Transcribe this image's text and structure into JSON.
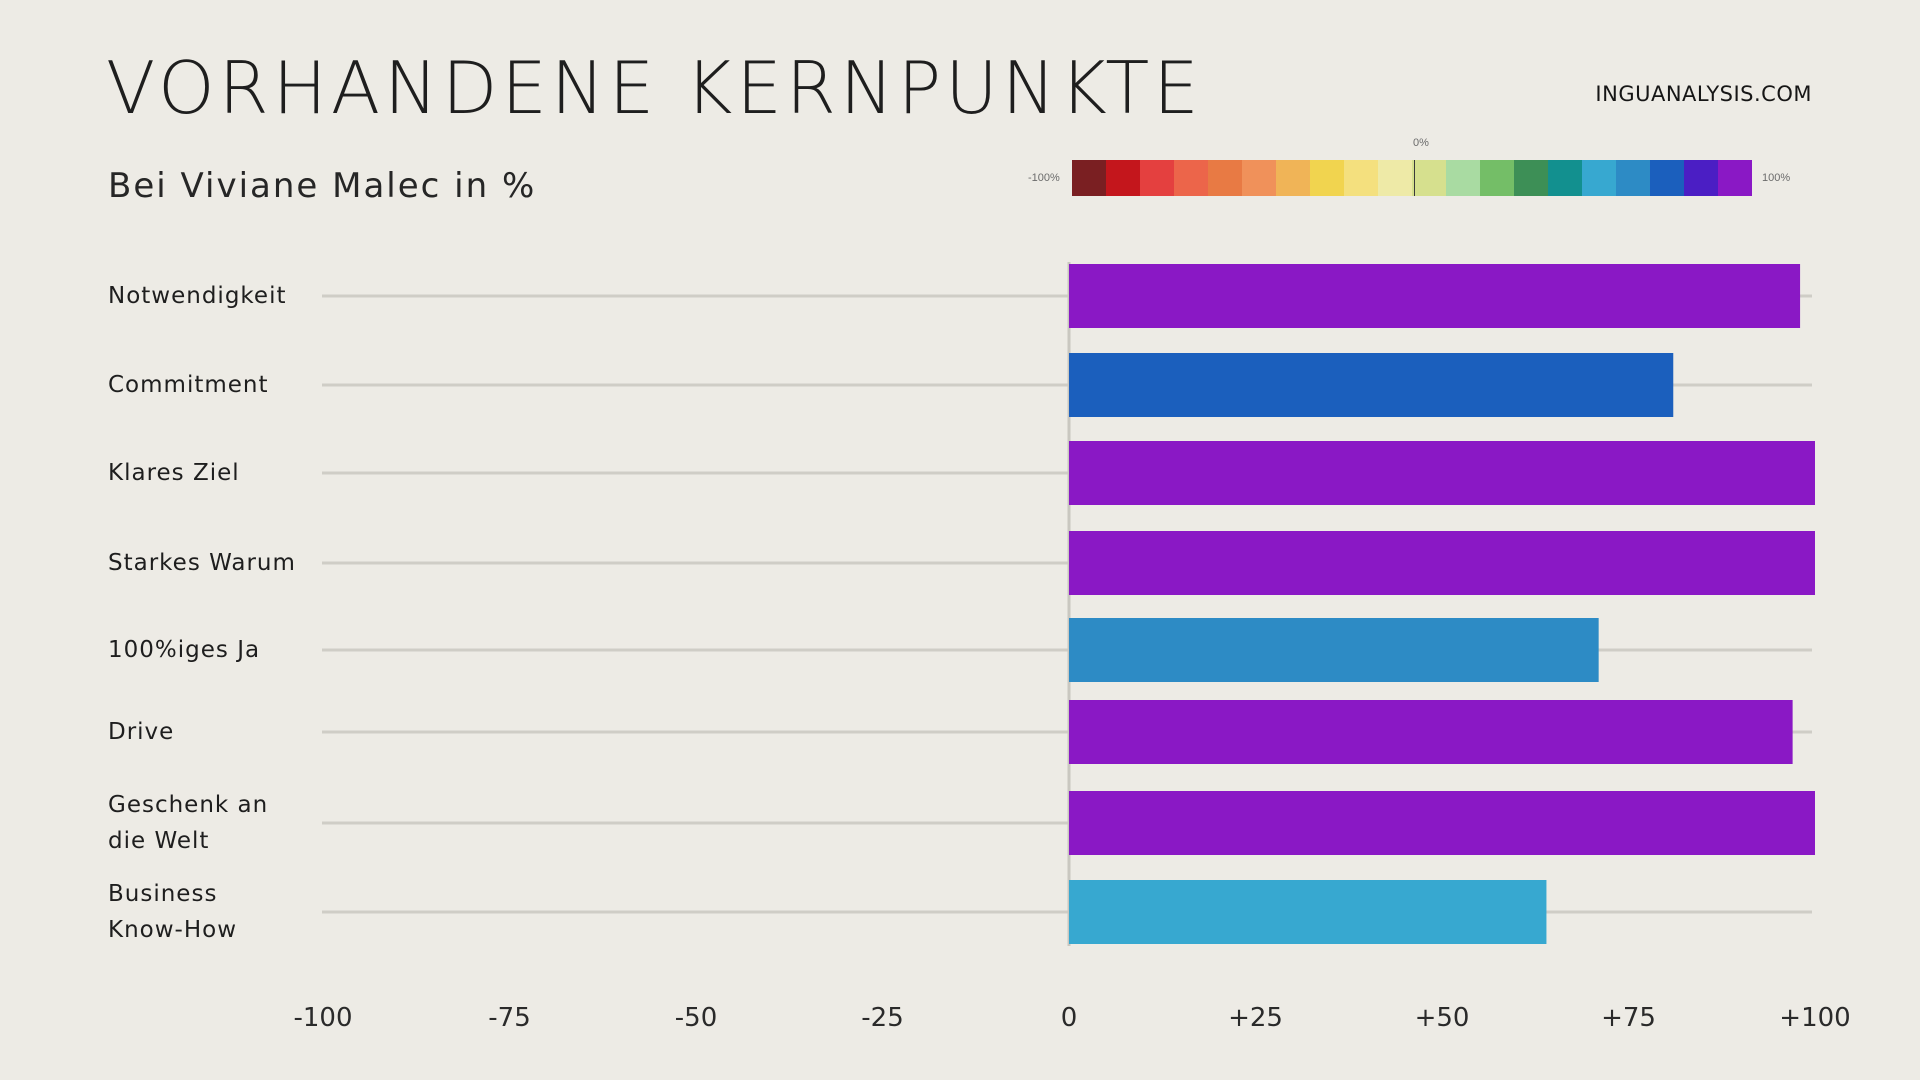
{
  "title": "VORHANDENE KERNPUNKTE",
  "subtitle": "Bei Viviane Malec in %",
  "brand": "INGUANALYSIS.COM",
  "legend": {
    "zero_label": "0%",
    "min_label": "-100%",
    "max_label": "100%",
    "colors": [
      "#7a1f22",
      "#c4161c",
      "#e4403f",
      "#ec654a",
      "#e87a44",
      "#f0915a",
      "#f0b457",
      "#f1d44f",
      "#f4e07e",
      "#eeeaa7",
      "#d6e08e",
      "#a9dba2",
      "#74be67",
      "#3d8f56",
      "#12908f",
      "#37a8d0",
      "#2d8bc5",
      "#1b5fbd",
      "#4b1ec4",
      "#8a18c5"
    ]
  },
  "chart_data": {
    "type": "bar",
    "orientation": "horizontal",
    "categories": [
      "Notwendigkeit",
      "Commitment",
      "Klares Ziel",
      "Starkes Warum",
      "100%iges Ja",
      "Drive",
      "Geschenk an die Welt",
      "Business Know-How"
    ],
    "category_lines": [
      [
        "Notwendigkeit"
      ],
      [
        "Commitment"
      ],
      [
        "Klares Ziel"
      ],
      [
        "Starkes Warum"
      ],
      [
        "100%iges Ja"
      ],
      [
        "Drive"
      ],
      [
        "Geschenk an",
        "die Welt"
      ],
      [
        "Business",
        "Know-How"
      ]
    ],
    "values": [
      98,
      81,
      100,
      100,
      71,
      97,
      100,
      64
    ],
    "colors": [
      "#8a18c5",
      "#1b5fbd",
      "#8a18c5",
      "#8a18c5",
      "#2d8bc5",
      "#8a18c5",
      "#8a18c5",
      "#37a8d0"
    ],
    "xlim": [
      -100,
      100
    ],
    "xticks": [
      -100,
      -75,
      -50,
      -25,
      0,
      25,
      50,
      75,
      100
    ],
    "xtick_labels": [
      "-100",
      "-75",
      "-50",
      "-25",
      "0",
      "+25",
      "+50",
      "+75",
      "+100"
    ],
    "grid": true
  }
}
